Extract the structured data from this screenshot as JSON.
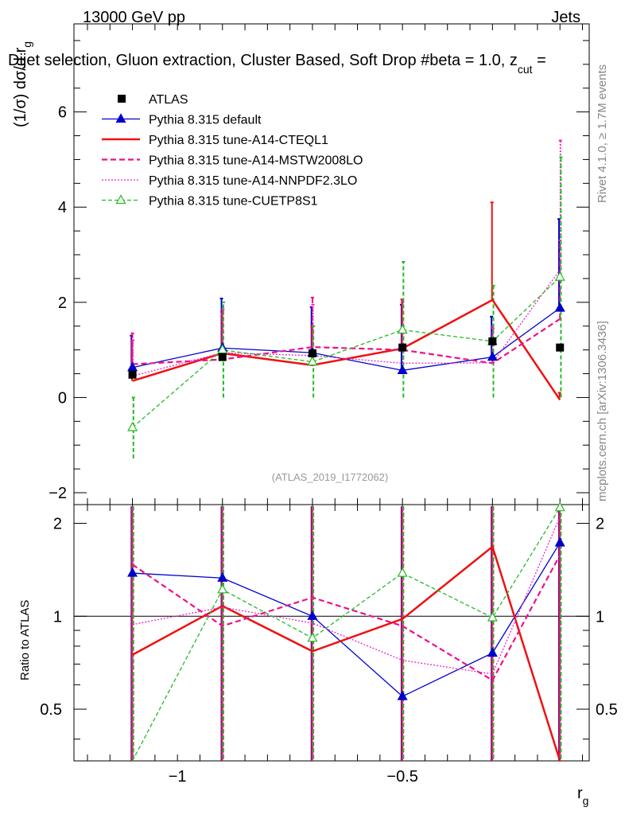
{
  "header": {
    "energy_label": "13000 GeV pp",
    "category_label": "Jets",
    "title": "Dijet selection, Gluon extraction, Cluster Based, Soft Drop #beta = 1.0, z",
    "title_sub": "cut",
    "title_tail": " =",
    "y_label": "(1/σ) dσ/d r",
    "y_label_sub": "g",
    "x_label": "r",
    "x_label_sub": "g",
    "ratio_y_label": "Ratio to ATLAS",
    "analysis_id": "(ATLAS_2019_I1772062)",
    "rivet_label": "Rivet 4.1.0, ≥ 1.7M events",
    "mcplots_label": "mcplots.cern.ch [arXiv:1306.3436]"
  },
  "chart_data": {
    "type": "line",
    "x": [
      -1.1,
      -0.9,
      -0.7,
      -0.5,
      -0.3,
      -0.15
    ],
    "xlim": [
      -1.23,
      -0.085
    ],
    "ylim": [
      -2.25,
      7.85
    ],
    "ratio_ylim": [
      0.34,
      2.3
    ],
    "x_ticks": [
      -1,
      -0.5
    ],
    "x_tick_labels": [
      "−1",
      "−0.5"
    ],
    "y_ticks": [
      -2,
      0,
      2,
      4,
      6
    ],
    "y_tick_labels": [
      "−2",
      "0",
      "2",
      "4",
      "6"
    ],
    "ratio_ticks": [
      0.5,
      1,
      2
    ],
    "ratio_tick_labels": [
      "0.5",
      "1",
      "2"
    ],
    "series": [
      {
        "name": "ATLAS",
        "style": "data",
        "color": "#000000",
        "values": [
          0.48,
          0.85,
          0.93,
          1.05,
          1.18,
          1.05
        ]
      },
      {
        "name": "Pythia 8.315 default",
        "style": "solid",
        "marker": "triangle-filled",
        "color": "#0000cc",
        "values": [
          0.63,
          1.04,
          0.94,
          0.57,
          0.85,
          1.88
        ],
        "err_low": [
          0.6,
          1.04,
          0.94,
          0.57,
          0.85,
          1.88
        ],
        "err_high": [
          1.3,
          2.08,
          1.9,
          1.95,
          1.7,
          3.75
        ],
        "ratio": [
          1.38,
          1.33,
          1.0,
          0.55,
          0.76,
          1.73
        ]
      },
      {
        "name": "Pythia 8.315 tune-A14-CTEQL1",
        "style": "solid-thick",
        "color": "#ee1111",
        "values": [
          0.35,
          0.93,
          0.68,
          1.03,
          2.05,
          -0.05
        ],
        "err_low": [
          0.35,
          0.93,
          0.68,
          1.03,
          2.05,
          0
        ],
        "err_high": [
          1.2,
          1.8,
          1.5,
          2.06,
          4.1,
          0.1
        ],
        "ratio": [
          0.75,
          1.08,
          0.77,
          0.98,
          1.68,
          0.2
        ]
      },
      {
        "name": "Pythia 8.315 tune-A14-MSTW2008LO",
        "style": "dashed",
        "color": "#ee1188",
        "values": [
          0.7,
          0.8,
          1.06,
          1.0,
          0.72,
          1.65
        ],
        "err_low": [
          0.7,
          0.8,
          1.06,
          1.0,
          0.72,
          1.65
        ],
        "err_high": [
          1.35,
          1.75,
          2.1,
          2.0,
          1.5,
          3.3
        ],
        "ratio": [
          1.47,
          0.93,
          1.15,
          0.93,
          0.62,
          1.58
        ]
      },
      {
        "name": "Pythia 8.315 tune-A14-NNPDF2.3LO",
        "style": "dotted",
        "color": "#ee22cc",
        "values": [
          0.45,
          0.94,
          0.88,
          0.72,
          0.73,
          2.68
        ],
        "err_low": [
          0.45,
          0.94,
          0.88,
          0.72,
          0.73,
          2.68
        ],
        "err_high": [
          1.2,
          1.85,
          1.95,
          1.5,
          1.45,
          5.4
        ],
        "ratio": [
          0.94,
          1.07,
          0.95,
          0.72,
          0.65,
          2.1
        ]
      },
      {
        "name": "Pythia 8.315 tune-CUETP8S1",
        "style": "dashed-fine",
        "marker": "triangle-open",
        "color": "#22bb22",
        "values": [
          -0.63,
          1.0,
          0.75,
          1.42,
          1.18,
          2.53
        ],
        "err_low": [
          -1.28,
          0.0,
          0.0,
          0.0,
          0.0,
          0.0
        ],
        "err_high": [
          0.0,
          2.0,
          1.5,
          2.85,
          2.35,
          5.05
        ],
        "ratio": [
          0.25,
          1.22,
          0.85,
          1.38,
          0.99,
          2.25
        ]
      }
    ]
  }
}
